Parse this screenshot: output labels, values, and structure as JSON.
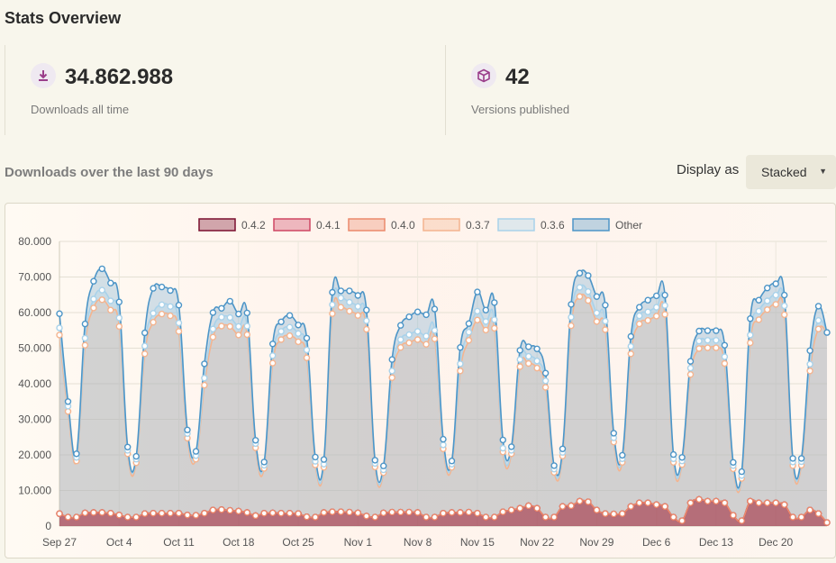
{
  "page": {
    "title": "Stats Overview"
  },
  "stats": [
    {
      "icon": "download-icon",
      "value": "34.862.988",
      "label": "Downloads all time"
    },
    {
      "icon": "box-icon",
      "value": "42",
      "label": "Versions published"
    }
  ],
  "downloads_section": {
    "title": "Downloads over the last 90 days",
    "display_label": "Display as",
    "display_value": "Stacked"
  },
  "colors": {
    "0.4.2": "#7a0e2e",
    "0.4.1": "#cf4663",
    "0.4.0": "#eb8a6c",
    "0.3.7": "#f4b48f",
    "0.3.6": "#a9d2ea",
    "Other": "#4d95c7"
  },
  "chart_data": {
    "type": "area",
    "stacked": true,
    "ylim": [
      0,
      80000
    ],
    "yticks": [
      "0",
      "10.000",
      "20.000",
      "30.000",
      "40.000",
      "50.000",
      "60.000",
      "70.000",
      "80.000"
    ],
    "xtick_labels": [
      "Sep 27",
      "Oct 4",
      "Oct 11",
      "Oct 18",
      "Oct 25",
      "Nov 1",
      "Nov 8",
      "Nov 15",
      "Nov 22",
      "Nov 29",
      "Dec 6",
      "Dec 13",
      "Dec 20"
    ],
    "legend": [
      "0.4.2",
      "0.4.1",
      "0.4.0",
      "0.3.7",
      "0.3.6",
      "Other"
    ],
    "series": [
      {
        "name": "0.4.2",
        "values": [
          3500,
          2500,
          2500,
          3700,
          3800,
          3800,
          3600,
          3100,
          2500,
          2500,
          3500,
          3600,
          3600,
          3600,
          3600,
          3100,
          3000,
          3600,
          4500,
          4600,
          4400,
          4200,
          3800,
          2900,
          3600,
          3700,
          3600,
          3600,
          3500,
          2600,
          2500,
          3800,
          4000,
          4000,
          3900,
          3700,
          2800,
          2500,
          3700,
          3900,
          3900,
          3900,
          3800,
          2500,
          2500,
          3600,
          3800,
          3800,
          3900,
          3600,
          2500,
          2500,
          4000,
          4500,
          5000,
          5700,
          5000,
          2500,
          2500,
          5500,
          5700,
          7000,
          6800,
          4500,
          3500,
          3400,
          3500,
          5500,
          6500,
          6500,
          6000,
          5500,
          2500,
          1500,
          6500,
          7500,
          7000,
          7000,
          6500,
          3000,
          1500,
          7000,
          6500,
          6500,
          6500,
          6000,
          2500,
          2500,
          4500,
          3500,
          1000
        ]
      },
      {
        "name": "0.4.1",
        "values": [
          0,
          0,
          0,
          0,
          0,
          0,
          0,
          0,
          0,
          0,
          0,
          0,
          0,
          0,
          0,
          0,
          0,
          0,
          0,
          0,
          0,
          0,
          0,
          0,
          0,
          0,
          0,
          0,
          0,
          0,
          0,
          0,
          0,
          0,
          0,
          0,
          0,
          0,
          0,
          0,
          0,
          0,
          0,
          0,
          0,
          0,
          0,
          0,
          0,
          0,
          0,
          0,
          0,
          0,
          0,
          0,
          0,
          0,
          0,
          0,
          0,
          0,
          0,
          0,
          0,
          0,
          0,
          0,
          0,
          0,
          0,
          0,
          0,
          0,
          0,
          0,
          0,
          0,
          0,
          0,
          0,
          0,
          0,
          0,
          0,
          0,
          0,
          0,
          0,
          0,
          0
        ]
      },
      {
        "name": "0.4.0",
        "values": [
          0,
          0,
          0,
          0,
          0,
          0,
          0,
          0,
          0,
          0,
          0,
          0,
          0,
          0,
          0,
          0,
          0,
          0,
          0,
          0,
          0,
          0,
          0,
          0,
          0,
          0,
          0,
          0,
          0,
          0,
          0,
          0,
          0,
          0,
          0,
          0,
          0,
          0,
          0,
          0,
          0,
          0,
          0,
          0,
          0,
          0,
          0,
          0,
          0,
          0,
          0,
          0,
          0,
          0,
          0,
          0,
          0,
          0,
          0,
          0,
          0,
          0,
          0,
          0,
          0,
          0,
          0,
          0,
          0,
          0,
          0,
          0,
          0,
          0,
          0,
          0,
          0,
          0,
          0,
          0,
          0,
          0,
          0,
          0,
          0,
          0,
          0,
          0,
          0,
          0,
          0
        ]
      },
      {
        "name": "0.3.7",
        "values": [
          50200,
          29700,
          15800,
          47100,
          57500,
          59800,
          57100,
          53000,
          17800,
          15300,
          44900,
          53700,
          56000,
          55500,
          51100,
          21600,
          15800,
          36000,
          48600,
          51600,
          51700,
          49500,
          50000,
          19100,
          12600,
          42100,
          48800,
          49900,
          48300,
          44700,
          14700,
          12700,
          55700,
          57500,
          56500,
          55500,
          52500,
          14100,
          11300,
          37800,
          46300,
          47600,
          48600,
          48600,
          50100,
          18100,
          12700,
          39800,
          48300,
          54300,
          52600,
          53100,
          16800,
          15800,
          39800,
          40000,
          39400,
          36500,
          12600,
          14200,
          50600,
          57500,
          56600,
          53000,
          51700,
          20200,
          14400,
          42900,
          50300,
          51300,
          53000,
          54000,
          15400,
          15800,
          36100,
          42400,
          43100,
          43100,
          39200,
          13100,
          11900,
          44500,
          51500,
          54300,
          55800,
          53400,
          14500,
          14600,
          39100,
          51900,
          53400
        ]
      },
      {
        "name": "0.3.6",
        "values": [
          2000,
          1500,
          1000,
          2000,
          2500,
          2700,
          2600,
          2400,
          1000,
          1000,
          2200,
          2500,
          2600,
          2600,
          2400,
          1300,
          1000,
          2000,
          2300,
          2500,
          2500,
          2400,
          2400,
          1200,
          900,
          2100,
          2300,
          2400,
          2300,
          2200,
          1000,
          900,
          2500,
          2600,
          2500,
          2500,
          2400,
          1000,
          800,
          1900,
          2200,
          2300,
          2300,
          2300,
          2400,
          1100,
          900,
          2000,
          2300,
          2500,
          2400,
          2400,
          1100,
          1000,
          2000,
          2000,
          2000,
          1800,
          900,
          1000,
          2400,
          2600,
          2500,
          2400,
          2400,
          1200,
          1000,
          2100,
          2300,
          2400,
          2500,
          2500,
          1000,
          1000,
          1800,
          2100,
          2100,
          2100,
          1900,
          900,
          800,
          2200,
          2400,
          2500,
          2600,
          2500,
          1000,
          1000,
          1900,
          2400,
          0
        ]
      },
      {
        "name": "Other",
        "values": [
          4000,
          1300,
          1000,
          4000,
          5000,
          6000,
          5000,
          4500,
          900,
          800,
          3700,
          7000,
          5000,
          4500,
          5000,
          1000,
          1200,
          4000,
          4600,
          2500,
          4600,
          3500,
          3700,
          900,
          900,
          3300,
          2700,
          3300,
          2400,
          3300,
          1200,
          1300,
          3500,
          2000,
          3200,
          3100,
          3000,
          900,
          1100,
          3200,
          4000,
          5000,
          5500,
          6000,
          6000,
          1600,
          900,
          4600,
          2400,
          5400,
          3200,
          4800,
          2300,
          1000,
          2600,
          2700,
          3400,
          2200,
          1000,
          1000,
          3600,
          4000,
          4500,
          4600,
          4500,
          1300,
          1000,
          2800,
          2400,
          3300,
          3200,
          2900,
          1200,
          1000,
          1900,
          2800,
          2700,
          2700,
          3200,
          900,
          1100,
          4600,
          3100,
          3600,
          3200,
          3000,
          1000,
          900,
          3800,
          4000,
          0
        ]
      }
    ]
  }
}
